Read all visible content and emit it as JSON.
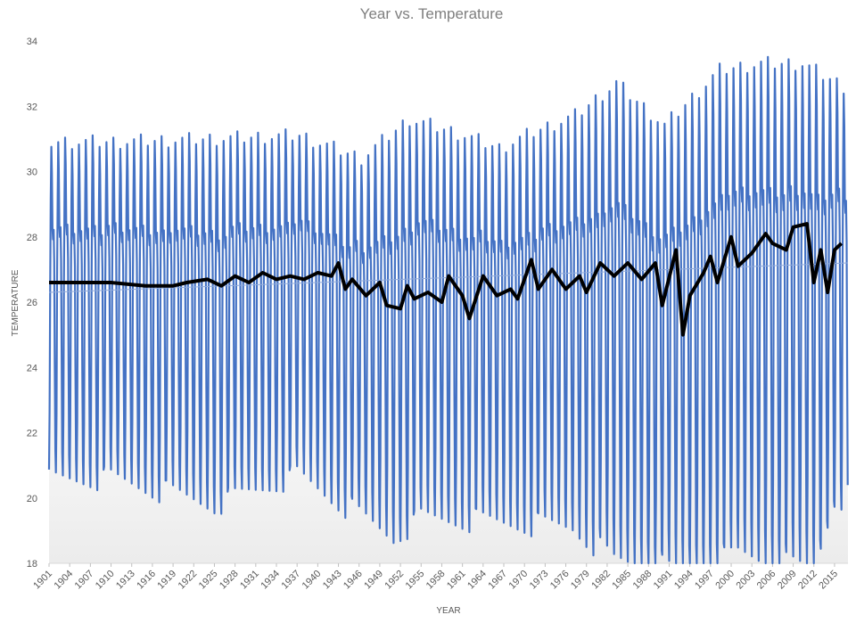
{
  "chart_data": {
    "type": "line",
    "title": "Year vs. Temperature",
    "xlabel": "YEAR",
    "ylabel": "TEMPERATURE",
    "ylim": [
      18,
      34
    ],
    "xlim": [
      1901,
      2016
    ],
    "y_ticks": [
      18,
      20,
      22,
      24,
      26,
      28,
      30,
      32,
      34
    ],
    "x_ticks": [
      "1901",
      "1904",
      "1907",
      "1910",
      "1913",
      "1916",
      "1919",
      "1922",
      "1925",
      "1928",
      "1931",
      "1934",
      "1937",
      "1940",
      "1943",
      "1946",
      "1949",
      "1952",
      "1955",
      "1958",
      "1961",
      "1964",
      "1967",
      "1970",
      "1973",
      "1976",
      "1979",
      "1982",
      "1985",
      "1988",
      "1991",
      "1994",
      "1997",
      "2000",
      "2003",
      "2006",
      "2009",
      "2012",
      "2015"
    ],
    "grid": false,
    "legend": "none",
    "series": [
      {
        "style": "monthly",
        "color": "#4472c4",
        "monthly_profile": [
          20.7,
          22.5,
          26.5,
          29.2,
          30.8,
          30.0,
          28.2,
          27.9,
          28.2,
          27.2,
          24.0,
          21.3
        ],
        "summer_peaks": [
          {
            "year": 1901,
            "value": 30.9
          },
          {
            "year": 1910,
            "value": 30.9
          },
          {
            "year": 1925,
            "value": 31.0
          },
          {
            "year": 1937,
            "value": 31.1
          },
          {
            "year": 1946,
            "value": 30.4
          },
          {
            "year": 1953,
            "value": 31.6
          },
          {
            "year": 1961,
            "value": 31.1
          },
          {
            "year": 1966,
            "value": 30.7
          },
          {
            "year": 1971,
            "value": 31.2
          },
          {
            "year": 1977,
            "value": 31.7
          },
          {
            "year": 1983,
            "value": 32.7
          },
          {
            "year": 1990,
            "value": 31.4
          },
          {
            "year": 1998,
            "value": 33.1
          },
          {
            "year": 2004,
            "value": 33.3
          },
          {
            "year": 2010,
            "value": 33.3
          },
          {
            "year": 2016,
            "value": 32.6
          }
        ],
        "winter_lows": [
          {
            "year": 1901,
            "value": 20.6
          },
          {
            "year": 1910,
            "value": 20.6
          },
          {
            "year": 1925,
            "value": 19.8
          },
          {
            "year": 1937,
            "value": 20.7
          },
          {
            "year": 1951,
            "value": 18.8
          },
          {
            "year": 1955,
            "value": 19.4
          },
          {
            "year": 1963,
            "value": 19.3
          },
          {
            "year": 1977,
            "value": 19.1
          },
          {
            "year": 1983,
            "value": 18.1
          },
          {
            "year": 1990,
            "value": 17.9
          },
          {
            "year": 1993,
            "value": 17.6
          },
          {
            "year": 2001,
            "value": 18.3
          },
          {
            "year": 2012,
            "value": 17.8
          },
          {
            "year": 2015,
            "value": 20.0
          }
        ]
      },
      {
        "style": "moving-average",
        "color": "#000000",
        "points": [
          {
            "year": 1901,
            "value": 26.6
          },
          {
            "year": 1905,
            "value": 26.6
          },
          {
            "year": 1910,
            "value": 26.6
          },
          {
            "year": 1915,
            "value": 26.5
          },
          {
            "year": 1919,
            "value": 26.5
          },
          {
            "year": 1921,
            "value": 26.6
          },
          {
            "year": 1924,
            "value": 26.7
          },
          {
            "year": 1926,
            "value": 26.5
          },
          {
            "year": 1928,
            "value": 26.8
          },
          {
            "year": 1930,
            "value": 26.6
          },
          {
            "year": 1932,
            "value": 26.9
          },
          {
            "year": 1934,
            "value": 26.7
          },
          {
            "year": 1936,
            "value": 26.8
          },
          {
            "year": 1938,
            "value": 26.7
          },
          {
            "year": 1940,
            "value": 26.9
          },
          {
            "year": 1942,
            "value": 26.8
          },
          {
            "year": 1943,
            "value": 27.2
          },
          {
            "year": 1944,
            "value": 26.4
          },
          {
            "year": 1945,
            "value": 26.7
          },
          {
            "year": 1947,
            "value": 26.2
          },
          {
            "year": 1949,
            "value": 26.6
          },
          {
            "year": 1950,
            "value": 25.9
          },
          {
            "year": 1952,
            "value": 25.8
          },
          {
            "year": 1953,
            "value": 26.5
          },
          {
            "year": 1954,
            "value": 26.1
          },
          {
            "year": 1956,
            "value": 26.3
          },
          {
            "year": 1958,
            "value": 26.0
          },
          {
            "year": 1959,
            "value": 26.8
          },
          {
            "year": 1961,
            "value": 26.2
          },
          {
            "year": 1962,
            "value": 25.5
          },
          {
            "year": 1964,
            "value": 26.8
          },
          {
            "year": 1966,
            "value": 26.2
          },
          {
            "year": 1968,
            "value": 26.4
          },
          {
            "year": 1969,
            "value": 26.1
          },
          {
            "year": 1971,
            "value": 27.3
          },
          {
            "year": 1972,
            "value": 26.4
          },
          {
            "year": 1974,
            "value": 27.0
          },
          {
            "year": 1976,
            "value": 26.4
          },
          {
            "year": 1978,
            "value": 26.8
          },
          {
            "year": 1979,
            "value": 26.3
          },
          {
            "year": 1981,
            "value": 27.2
          },
          {
            "year": 1983,
            "value": 26.8
          },
          {
            "year": 1985,
            "value": 27.2
          },
          {
            "year": 1987,
            "value": 26.7
          },
          {
            "year": 1989,
            "value": 27.2
          },
          {
            "year": 1990,
            "value": 25.9
          },
          {
            "year": 1992,
            "value": 27.6
          },
          {
            "year": 1993,
            "value": 25.0
          },
          {
            "year": 1994,
            "value": 26.2
          },
          {
            "year": 1996,
            "value": 26.9
          },
          {
            "year": 1997,
            "value": 27.4
          },
          {
            "year": 1998,
            "value": 26.6
          },
          {
            "year": 2000,
            "value": 28.0
          },
          {
            "year": 2001,
            "value": 27.1
          },
          {
            "year": 2003,
            "value": 27.5
          },
          {
            "year": 2005,
            "value": 28.1
          },
          {
            "year": 2006,
            "value": 27.8
          },
          {
            "year": 2008,
            "value": 27.6
          },
          {
            "year": 2009,
            "value": 28.3
          },
          {
            "year": 2011,
            "value": 28.4
          },
          {
            "year": 2012,
            "value": 26.6
          },
          {
            "year": 2013,
            "value": 27.6
          },
          {
            "year": 2014,
            "value": 26.3
          },
          {
            "year": 2015,
            "value": 27.6
          },
          {
            "year": 2016,
            "value": 27.8
          }
        ]
      },
      {
        "style": "trendline",
        "color": "#8faadc",
        "points": [
          {
            "year": 1901,
            "value": 26.3
          },
          {
            "year": 2016,
            "value": 27.2
          }
        ]
      }
    ]
  }
}
